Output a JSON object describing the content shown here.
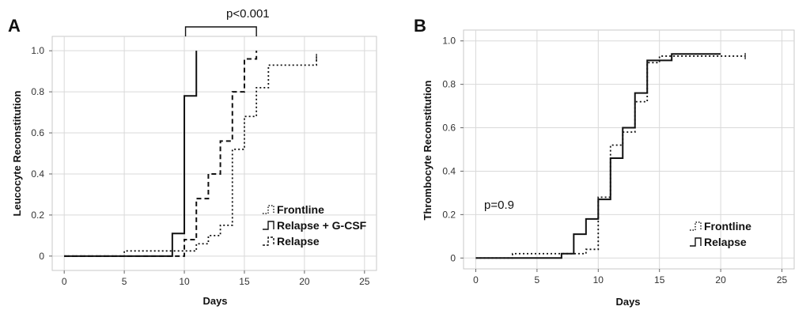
{
  "chart_data": [
    {
      "type": "line",
      "panel_label": "A",
      "title": "",
      "xlabel": "Days",
      "ylabel": "Leucocyte Reconstitution",
      "xlim": [
        -1,
        26
      ],
      "ylim": [
        -0.07,
        1.07
      ],
      "x_ticks": [
        0,
        5,
        10,
        15,
        20,
        25
      ],
      "y_ticks": [
        0,
        0.2,
        0.4,
        0.6,
        0.8,
        1.0
      ],
      "y_tick_labels": [
        "0",
        "0.2",
        "0.4",
        "0.6",
        "0.8",
        "1.0"
      ],
      "grid": true,
      "legend_position": "bottom-right",
      "annotation": "p<0.001",
      "series": [
        {
          "name": "Frontline",
          "style": "dotted",
          "x": [
            0,
            5,
            11,
            12,
            13,
            14,
            15,
            16,
            17,
            21
          ],
          "y": [
            0,
            0.025,
            0.06,
            0.1,
            0.15,
            0.52,
            0.68,
            0.82,
            0.93,
            0.97
          ]
        },
        {
          "name": "Relapse + G-CSF",
          "style": "solid",
          "x": [
            0,
            9,
            10,
            11
          ],
          "y": [
            0,
            0.11,
            0.78,
            1.0
          ]
        },
        {
          "name": "Relapse",
          "style": "dashed",
          "x": [
            0,
            10,
            11,
            12,
            13,
            14,
            15,
            16
          ],
          "y": [
            0,
            0.08,
            0.28,
            0.4,
            0.56,
            0.8,
            0.96,
            1.0
          ]
        }
      ]
    },
    {
      "type": "line",
      "panel_label": "B",
      "title": "",
      "xlabel": "Days",
      "ylabel": "Thrombocyte Reconstitution",
      "xlim": [
        -1,
        26
      ],
      "ylim": [
        -0.05,
        1.05
      ],
      "x_ticks": [
        0,
        5,
        10,
        15,
        20,
        25
      ],
      "y_ticks": [
        0,
        0.2,
        0.4,
        0.6,
        0.8,
        1.0
      ],
      "y_tick_labels": [
        "0",
        "0.2",
        "0.4",
        "0.6",
        "0.8",
        "1.0"
      ],
      "grid": true,
      "legend_position": "bottom-right",
      "annotation": "p=0.9",
      "series": [
        {
          "name": "Frontline",
          "style": "dotted",
          "x": [
            0,
            3,
            9,
            10,
            11,
            12,
            13,
            14,
            15,
            16,
            22
          ],
          "y": [
            0,
            0.02,
            0.04,
            0.28,
            0.52,
            0.58,
            0.72,
            0.9,
            0.93,
            0.93,
            0.93
          ]
        },
        {
          "name": "Relapse",
          "style": "solid",
          "x": [
            0,
            7,
            8,
            9,
            10,
            11,
            12,
            13,
            14,
            16,
            20
          ],
          "y": [
            0,
            0.02,
            0.11,
            0.18,
            0.27,
            0.46,
            0.6,
            0.76,
            0.91,
            0.94,
            0.94
          ]
        }
      ]
    }
  ]
}
